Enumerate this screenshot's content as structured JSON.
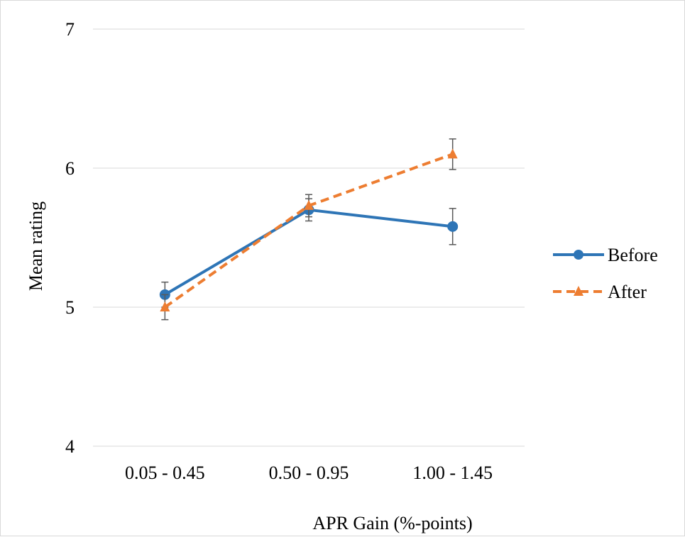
{
  "chart_data": {
    "type": "line",
    "title": "",
    "xlabel": "APR Gain (%-points)",
    "ylabel": "Mean rating",
    "ylim": [
      4,
      7
    ],
    "yticks": [
      4,
      5,
      6,
      7
    ],
    "grid": true,
    "legend_position": "right",
    "categories": [
      "0.05 - 0.45",
      "0.50 - 0.95",
      "1.00 - 1.45"
    ],
    "series": [
      {
        "name": "Before",
        "color": "#2E75B6",
        "line_style": "solid",
        "marker": "circle",
        "values": [
          5.09,
          5.7,
          5.58
        ],
        "error": [
          0.09,
          0.08,
          0.13
        ]
      },
      {
        "name": "After",
        "color": "#ED7D31",
        "line_style": "dashed",
        "marker": "triangle",
        "values": [
          5.0,
          5.73,
          6.1
        ],
        "error": [
          0.09,
          0.08,
          0.11
        ]
      }
    ]
  }
}
